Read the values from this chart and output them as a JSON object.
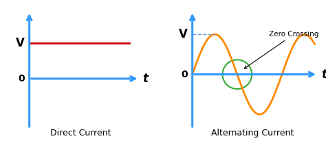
{
  "background_color": "#ffffff",
  "axis_color": "#3399ff",
  "dc_line_color": "#cc0000",
  "ac_line_color": "#ff8800",
  "zero_crossing_circle_color": "#33aa33",
  "dashed_line_color": "#6699cc",
  "dc_title": "Direct Current",
  "ac_title": "Alternating Current",
  "zero_crossing_label": "Zero Crossing",
  "v_label": "V",
  "zero_label": "0",
  "t_label": "t",
  "title_fontsize": 9,
  "axis_label_fontsize": 12,
  "annotation_fontsize": 7.5,
  "lw_axis": 2.2,
  "lw_signal": 2.0
}
